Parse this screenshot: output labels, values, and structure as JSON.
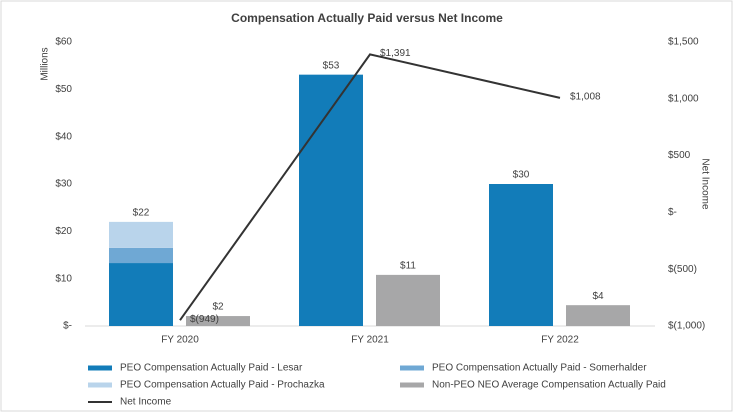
{
  "chart_data": {
    "type": "bar",
    "title": "Compensation Actually Paid versus Net Income",
    "y_label": "Millions",
    "y2_label": "Net Income",
    "categories": [
      "FY 2020",
      "FY 2021",
      "FY 2022"
    ],
    "ylim": [
      0,
      60
    ],
    "yticks": [
      {
        "value": 0,
        "label": "$-"
      },
      {
        "value": 10,
        "label": "$10"
      },
      {
        "value": 20,
        "label": "$20"
      },
      {
        "value": 30,
        "label": "$30"
      },
      {
        "value": 40,
        "label": "$40"
      },
      {
        "value": 50,
        "label": "$50"
      },
      {
        "value": 60,
        "label": "$60"
      }
    ],
    "y2lim": [
      -1000,
      1500
    ],
    "y2ticks": [
      {
        "value": -1000,
        "label": "$(1,000)"
      },
      {
        "value": -500,
        "label": "$(500)"
      },
      {
        "value": 0,
        "label": "$-"
      },
      {
        "value": 500,
        "label": "$500"
      },
      {
        "value": 1000,
        "label": "$1,000"
      },
      {
        "value": 1500,
        "label": "$1,500"
      }
    ],
    "stack_total_labels": [
      "$22",
      "$53",
      "$30"
    ],
    "series": [
      {
        "name": "PEO Compensation Actually Paid - Lesar",
        "color": "#127cb9",
        "stack": "PEO",
        "values": [
          13.3,
          53.1,
          30.0
        ]
      },
      {
        "name": "PEO Compensation Actually Paid - Somerhalder",
        "color": "#6fa8d4",
        "stack": "PEO",
        "values": [
          3.2,
          null,
          null
        ]
      },
      {
        "name": "PEO Compensation Actually Paid - Prochazka",
        "color": "#b9d4eb",
        "stack": "PEO",
        "values": [
          5.5,
          null,
          null
        ]
      },
      {
        "name": "Non-PEO NEO Average Compensation Actually Paid",
        "color": "#a7a7a8",
        "values": [
          2.1,
          10.8,
          4.4
        ],
        "value_labels": [
          "$2",
          "$11",
          "$4"
        ]
      },
      {
        "name": "Net Income",
        "color": "#333333",
        "type": "line",
        "axis": "y2",
        "values": [
          -949,
          1391,
          1008
        ],
        "value_labels": [
          "$(949)",
          "$1,391",
          "$1,008"
        ]
      }
    ]
  }
}
